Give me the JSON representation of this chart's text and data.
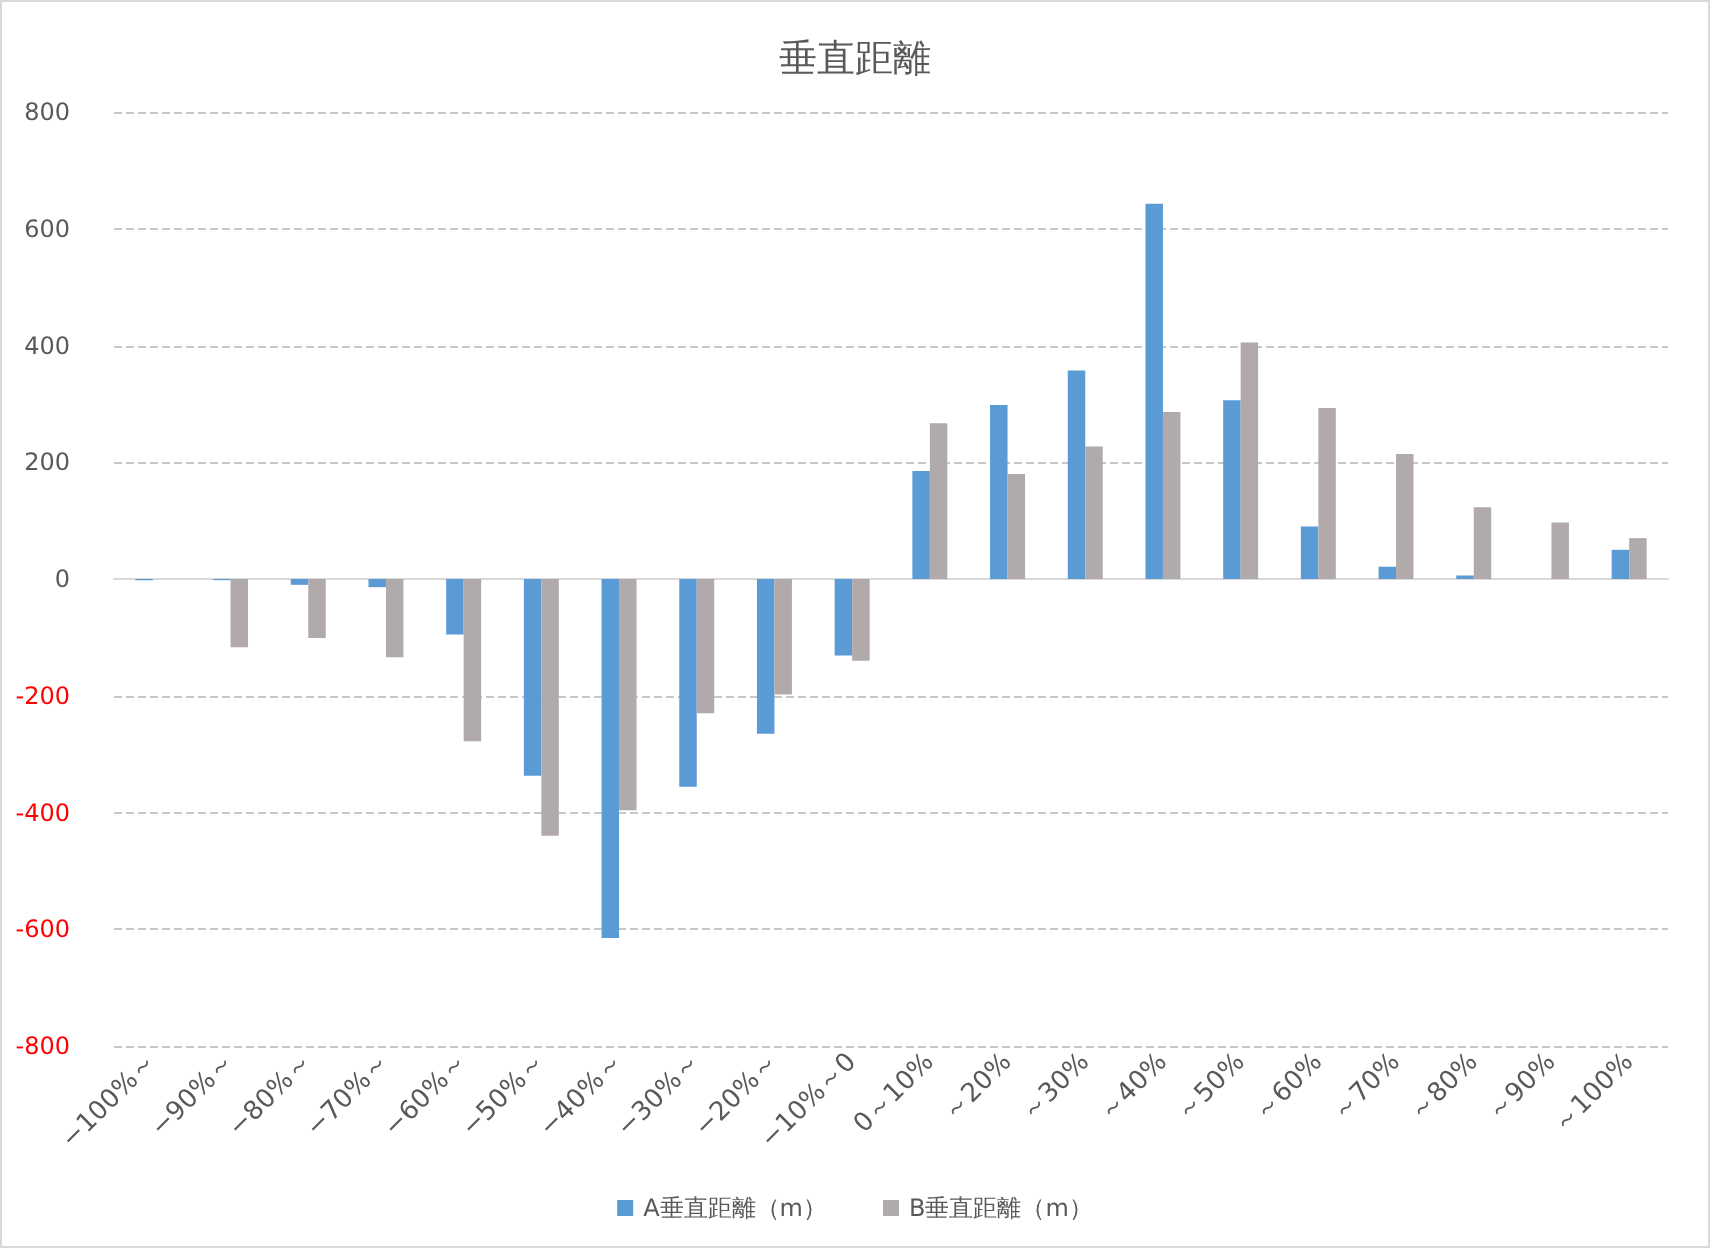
{
  "chart_data": {
    "type": "bar",
    "title": "垂直距離",
    "categories": [
      "−100%～",
      "−90%～",
      "−80%～",
      "−70%～",
      "−60%～",
      "−50%～",
      "−40%～",
      "−30%～",
      "−20%～",
      "−10%～0",
      "0～10%",
      "～20%",
      "～30%",
      "～40%",
      "～50%",
      "～60%",
      "～70%",
      "～80%",
      "～90%",
      "～100%"
    ],
    "series": [
      {
        "name": "A垂直距離（m）",
        "color": "#5b9bd5",
        "values": [
          -2,
          -2,
          -10,
          -14,
          -95,
          -337,
          -615,
          -356,
          -265,
          -131,
          185,
          298,
          357,
          643,
          306,
          90,
          21,
          6,
          0,
          50
        ]
      },
      {
        "name": "B垂直距離（m）",
        "color": "#b0aaaa",
        "values": [
          0,
          -117,
          -101,
          -134,
          -278,
          -440,
          -396,
          -230,
          -198,
          -140,
          267,
          180,
          227,
          286,
          405,
          293,
          214,
          123,
          97,
          70
        ]
      }
    ],
    "ylim": [
      -800,
      800
    ],
    "yticks": [
      -800,
      -600,
      -400,
      -200,
      0,
      200,
      400,
      600,
      800
    ],
    "grid": "y",
    "legend": "bottom"
  }
}
